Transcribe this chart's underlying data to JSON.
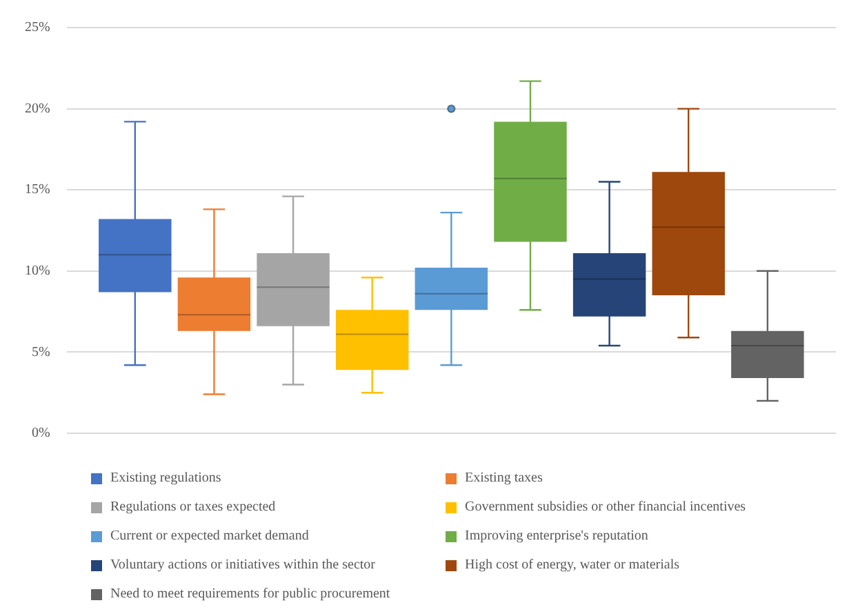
{
  "chart_data": {
    "type": "box",
    "categories": [
      null
    ],
    "ylim": [
      0,
      25
    ],
    "yticks": [
      {
        "value": 0,
        "label": "0%"
      },
      {
        "value": 5,
        "label": "5%"
      },
      {
        "value": 10,
        "label": "10%"
      },
      {
        "value": 15,
        "label": "15%"
      },
      {
        "value": 20,
        "label": "20%"
      },
      {
        "value": 25,
        "label": "25%"
      }
    ],
    "grid": "y",
    "legend": "bottom",
    "series": [
      {
        "name": "Existing regulations",
        "color": "#4472c4",
        "boxes": [
          {
            "low": 4.2,
            "q1": 8.7,
            "median": 11.0,
            "q3": 13.2,
            "high": 19.2
          }
        ]
      },
      {
        "name": "Existing taxes",
        "color": "#ed7d31",
        "boxes": [
          {
            "low": 2.4,
            "q1": 6.3,
            "median": 7.3,
            "q3": 9.6,
            "high": 13.8
          }
        ]
      },
      {
        "name": "Regulations or taxes expected",
        "color": "#a5a5a5",
        "boxes": [
          {
            "low": 3.0,
            "q1": 6.6,
            "median": 9.0,
            "q3": 11.1,
            "high": 14.6
          }
        ]
      },
      {
        "name": "Government subsidies or other financial incentives",
        "color": "#ffc000",
        "boxes": [
          {
            "low": 2.5,
            "q1": 3.9,
            "median": 6.1,
            "q3": 7.6,
            "high": 9.6
          }
        ]
      },
      {
        "name": "Current or expected market demand",
        "color": "#5b9bd5",
        "boxes": [
          {
            "low": 4.2,
            "q1": 7.6,
            "median": 8.6,
            "q3": 10.2,
            "high": 13.6,
            "outliers": [
              20.0
            ]
          }
        ]
      },
      {
        "name": "Improving enterprise's reputation",
        "color": "#70ad47",
        "boxes": [
          {
            "low": 7.6,
            "q1": 11.8,
            "median": 15.7,
            "q3": 19.2,
            "high": 21.7
          }
        ]
      },
      {
        "name": "Voluntary actions or initiatives within the sector",
        "color": "#264478",
        "boxes": [
          {
            "low": 5.4,
            "q1": 7.2,
            "median": 9.5,
            "q3": 11.1,
            "high": 15.5
          }
        ]
      },
      {
        "name": "High cost of energy, water or materials",
        "color": "#9e480e",
        "boxes": [
          {
            "low": 5.9,
            "q1": 8.5,
            "median": 12.7,
            "q3": 16.1,
            "high": 20.0
          }
        ]
      },
      {
        "name": "Need to meet requirements for public procurement",
        "color": "#636363",
        "boxes": [
          {
            "low": 2.0,
            "q1": 3.4,
            "median": 5.4,
            "q3": 6.3,
            "high": 10.0
          }
        ]
      }
    ]
  }
}
